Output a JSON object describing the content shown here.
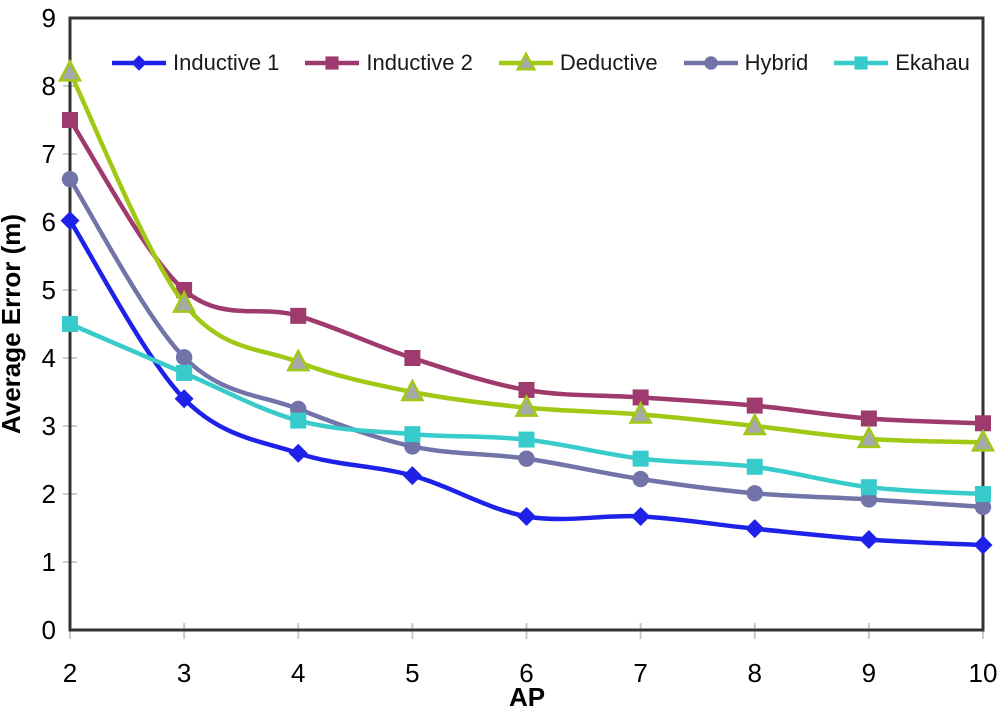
{
  "chart_data": {
    "type": "line",
    "title": "",
    "xlabel": "AP",
    "ylabel": "Average Error (m)",
    "x": [
      2,
      3,
      4,
      5,
      6,
      7,
      8,
      9,
      10
    ],
    "ylim": [
      0,
      9
    ],
    "yticks": [
      0,
      1,
      2,
      3,
      4,
      5,
      6,
      7,
      8,
      9
    ],
    "grid": false,
    "line_smoothing": true,
    "legend_position": "top-inside",
    "axis_color": "#333333",
    "tick_color": "#c9c9c9",
    "background_color": "#ffffff",
    "series": [
      {
        "name": "Inductive 1",
        "color": "#1e22e8",
        "marker": "diamond",
        "marker_fill": "#1e22e8",
        "values": [
          6.02,
          3.4,
          2.6,
          2.27,
          1.67,
          1.67,
          1.49,
          1.33,
          1.25
        ]
      },
      {
        "name": "Inductive 2",
        "color": "#9e3a6d",
        "marker": "square",
        "marker_fill": "#9e3a6d",
        "values": [
          7.5,
          5.0,
          4.62,
          4.0,
          3.53,
          3.42,
          3.3,
          3.11,
          3.04
        ]
      },
      {
        "name": "Deductive",
        "color": "#a0c814",
        "marker": "triangle",
        "marker_fill": "#a8a8a8",
        "values": [
          8.2,
          4.8,
          3.94,
          3.5,
          3.27,
          3.17,
          3.0,
          2.81,
          2.76
        ]
      },
      {
        "name": "Hybrid",
        "color": "#7273a8",
        "marker": "circle",
        "marker_fill": "#7273a8",
        "values": [
          6.63,
          4.01,
          3.25,
          2.7,
          2.52,
          2.22,
          2.01,
          1.92,
          1.81
        ]
      },
      {
        "name": "Ekahau",
        "color": "#38cbcb",
        "marker": "square",
        "marker_fill": "#38cbcb",
        "values": [
          4.5,
          3.78,
          3.08,
          2.88,
          2.8,
          2.52,
          2.4,
          2.1,
          2.0
        ]
      }
    ]
  }
}
